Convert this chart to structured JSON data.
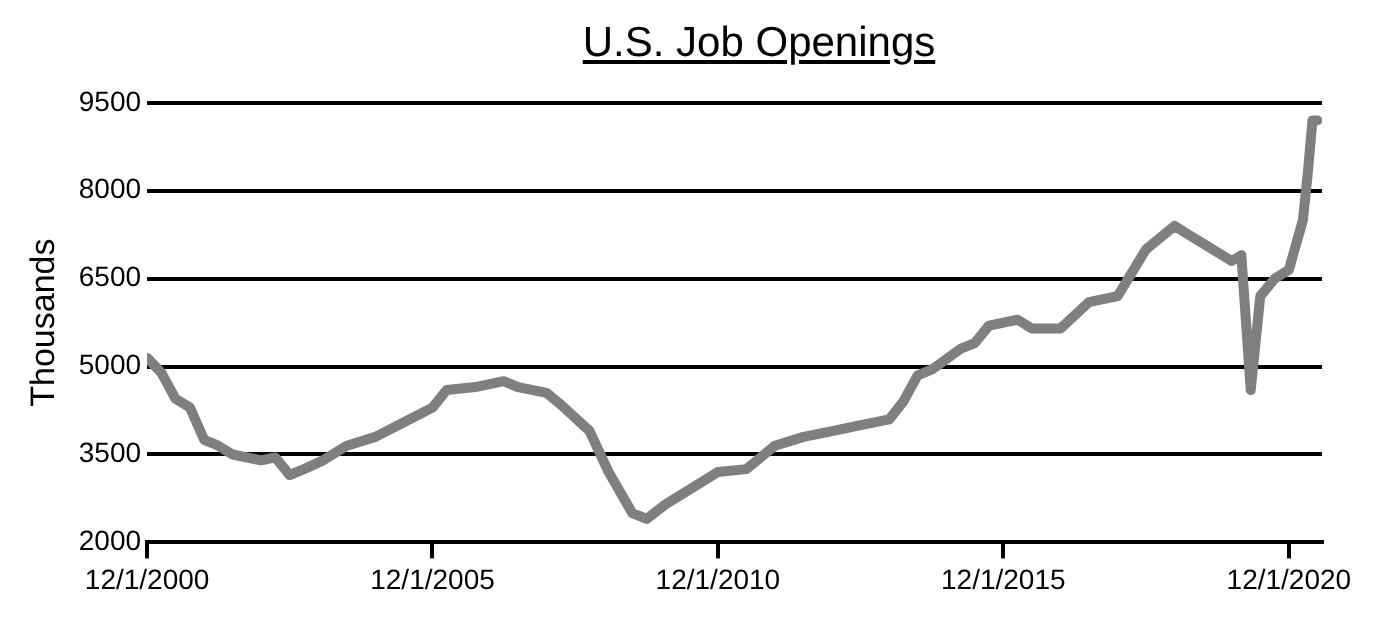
{
  "chart_data": {
    "type": "line",
    "title": "U.S. Job Openings",
    "ylabel": "Thousands",
    "x": [
      "2000-12-01",
      "2001-03-01",
      "2001-06-01",
      "2001-09-01",
      "2001-12-01",
      "2002-03-01",
      "2002-06-01",
      "2002-12-01",
      "2003-03-01",
      "2003-06-01",
      "2003-09-01",
      "2004-01-01",
      "2004-06-01",
      "2004-12-01",
      "2005-06-01",
      "2005-12-01",
      "2006-03-01",
      "2006-09-01",
      "2007-03-01",
      "2007-06-01",
      "2007-12-01",
      "2008-03-01",
      "2008-09-01",
      "2009-01-01",
      "2009-06-01",
      "2009-09-01",
      "2010-01-01",
      "2010-06-01",
      "2010-12-01",
      "2011-06-01",
      "2011-12-01",
      "2012-06-01",
      "2012-12-01",
      "2013-06-01",
      "2013-12-01",
      "2014-03-01",
      "2014-06-01",
      "2014-09-01",
      "2015-03-01",
      "2015-06-01",
      "2015-09-01",
      "2016-03-01",
      "2016-06-01",
      "2016-12-01",
      "2017-06-01",
      "2017-12-01",
      "2018-06-01",
      "2018-12-01",
      "2019-03-01",
      "2019-06-01",
      "2019-12-01",
      "2020-02-01",
      "2020-04-01",
      "2020-06-01",
      "2020-09-01",
      "2020-12-01",
      "2021-03-01",
      "2021-04-01",
      "2021-05-01",
      "2021-06-01"
    ],
    "series": [
      {
        "color": "#7f7f7f",
        "values": [
          5150,
          4900,
          4450,
          4300,
          3750,
          3650,
          3500,
          3400,
          3450,
          3150,
          3250,
          3400,
          3650,
          3800,
          4050,
          4300,
          4600,
          4650,
          4750,
          4650,
          4550,
          4350,
          3900,
          3200,
          2500,
          2400,
          2650,
          2900,
          3200,
          3250,
          3650,
          3800,
          3900,
          4000,
          4100,
          4400,
          4850,
          4950,
          5300,
          5400,
          5700,
          5800,
          5650,
          5650,
          6100,
          6200,
          7000,
          7400,
          7250,
          7100,
          6800,
          6900,
          4600,
          6200,
          6500,
          6650,
          7500,
          8300,
          9200,
          9200
        ]
      }
    ],
    "xlim": [
      "2000-12-01",
      "2021-07-01"
    ],
    "xticks": [
      {
        "value": "2000-12-01",
        "label": "12/1/2000"
      },
      {
        "value": "2005-12-01",
        "label": "12/1/2005"
      },
      {
        "value": "2010-12-01",
        "label": "12/1/2010"
      },
      {
        "value": "2015-12-01",
        "label": "12/1/2015"
      },
      {
        "value": "2020-12-01",
        "label": "12/1/2020"
      }
    ],
    "ylim": [
      2000,
      9500
    ],
    "yticks": [
      2000,
      3500,
      5000,
      6500,
      8000,
      9500
    ],
    "grid": "y",
    "legend": false,
    "marker": "none",
    "line_style": "solid"
  }
}
